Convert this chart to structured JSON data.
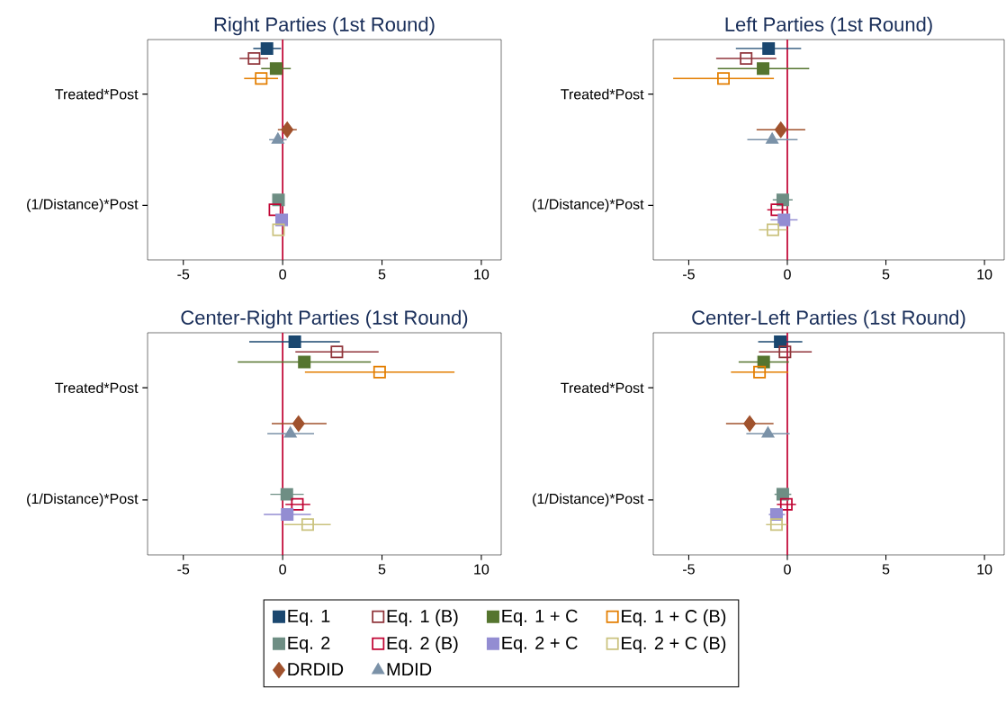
{
  "chart_data": [
    {
      "type": "scatter",
      "orientation": "horizontal",
      "title": "Right Parties (1st Round)",
      "categories": [
        "Treated*Post",
        "(1/Distance)*Post"
      ],
      "xlim": [
        -6.8,
        11
      ],
      "xticks": [
        -5,
        0,
        5,
        10
      ],
      "ref_lines": [
        {
          "axis": "x",
          "value": 0,
          "color": "#c10534"
        }
      ],
      "series": [
        {
          "color": "#1a476f",
          "marker": "square",
          "values": [
            -0.79,
            null
          ],
          "errors": [
            [
              -1.48,
              -0.08
            ],
            null
          ]
        },
        {
          "color": "#90353b",
          "marker": "square",
          "values": [
            -1.44,
            null
          ],
          "errors": [
            [
              -2.17,
              -0.73
            ],
            null
          ]
        },
        {
          "color": "#55752f",
          "marker": "square",
          "values": [
            -0.33,
            null
          ],
          "errors": [
            [
              -1.08,
              0.41
            ],
            null
          ]
        },
        {
          "color": "#e37e00",
          "marker": "square",
          "values": [
            -1.08,
            null
          ],
          "errors": [
            [
              -1.94,
              -0.23
            ],
            null
          ]
        },
        {
          "color": "#6e8e84",
          "marker": "square",
          "values": [
            null,
            -0.21
          ],
          "errors": [
            null,
            null
          ]
        },
        {
          "color": "#c10534",
          "marker": "square",
          "values": [
            null,
            -0.39
          ],
          "errors": [
            null,
            null
          ]
        },
        {
          "color": "#938dd2",
          "marker": "square",
          "values": [
            null,
            -0.05
          ],
          "errors": [
            null,
            null
          ]
        },
        {
          "color": "#cac27e",
          "marker": "square",
          "values": [
            null,
            -0.21
          ],
          "errors": [
            null,
            null
          ]
        },
        {
          "color": "#a0522d",
          "marker": "diamond",
          "values": [
            0.23,
            null
          ],
          "errors": [
            [
              -0.24,
              0.71
            ],
            null
          ]
        },
        {
          "color": "#7b92a8",
          "marker": "triangle",
          "values": [
            -0.24,
            null
          ],
          "errors": [
            [
              -0.68,
              0.2
            ],
            null
          ]
        }
      ]
    },
    {
      "type": "scatter",
      "orientation": "horizontal",
      "title": "Left Parties (1st Round)",
      "categories": [
        "Treated*Post",
        "(1/Distance)*Post"
      ],
      "xlim": [
        -6.8,
        11
      ],
      "xticks": [
        -5,
        0,
        5,
        10
      ],
      "ref_lines": [
        {
          "axis": "x",
          "value": 0,
          "color": "#c10534"
        }
      ],
      "series": [
        {
          "color": "#1a476f",
          "marker": "square",
          "values": [
            -0.95,
            null
          ],
          "errors": [
            [
              -2.61,
              0.7
            ],
            null
          ]
        },
        {
          "color": "#90353b",
          "marker": "square",
          "values": [
            -2.09,
            null
          ],
          "errors": [
            [
              -3.61,
              -0.56
            ],
            null
          ]
        },
        {
          "color": "#55752f",
          "marker": "square",
          "values": [
            -1.23,
            null
          ],
          "errors": [
            [
              -3.53,
              1.11
            ],
            null
          ]
        },
        {
          "color": "#e37e00",
          "marker": "square",
          "values": [
            -3.24,
            null
          ],
          "errors": [
            [
              -5.79,
              -0.68
            ],
            null
          ]
        },
        {
          "color": "#6e8e84",
          "marker": "square",
          "values": [
            null,
            -0.23
          ],
          "errors": [
            null,
            [
              -0.74,
              0.27
            ]
          ]
        },
        {
          "color": "#c10534",
          "marker": "square",
          "values": [
            null,
            -0.53
          ],
          "errors": [
            null,
            [
              -1.02,
              -0.03
            ]
          ]
        },
        {
          "color": "#938dd2",
          "marker": "square",
          "values": [
            null,
            -0.17
          ],
          "errors": [
            null,
            [
              -0.85,
              0.52
            ]
          ]
        },
        {
          "color": "#cac27e",
          "marker": "square",
          "values": [
            null,
            -0.73
          ],
          "errors": [
            null,
            [
              -1.44,
              -0.02
            ]
          ]
        },
        {
          "color": "#a0522d",
          "marker": "diamond",
          "values": [
            -0.33,
            null
          ],
          "errors": [
            [
              -1.56,
              0.91
            ],
            null
          ]
        },
        {
          "color": "#7b92a8",
          "marker": "triangle",
          "values": [
            -0.77,
            null
          ],
          "errors": [
            [
              -2.03,
              0.52
            ],
            null
          ]
        }
      ]
    },
    {
      "type": "scatter",
      "orientation": "horizontal",
      "title": "Center-Right Parties (1st Round)",
      "categories": [
        "Treated*Post",
        "(1/Distance)*Post"
      ],
      "xlim": [
        -6.8,
        11
      ],
      "xticks": [
        -5,
        0,
        5,
        10
      ],
      "ref_lines": [
        {
          "axis": "x",
          "value": 0,
          "color": "#c10534"
        }
      ],
      "legend": "bottom",
      "series": [
        {
          "name": "Eq. 1",
          "color": "#1a476f",
          "marker": "square",
          "values": [
            0.61,
            null
          ],
          "errors": [
            [
              -1.68,
              2.88
            ],
            null
          ]
        },
        {
          "name": "Eq. 1 (B)",
          "color": "#90353b",
          "marker": "square",
          "values": [
            2.73,
            null
          ],
          "errors": [
            [
              0.64,
              4.83
            ],
            null
          ]
        },
        {
          "name": "Eq. 1 + C",
          "color": "#55752f",
          "marker": "square",
          "values": [
            1.09,
            null
          ],
          "errors": [
            [
              -2.26,
              4.44
            ],
            null
          ]
        },
        {
          "name": "Eq. 1 + C (B)",
          "color": "#e37e00",
          "marker": "square",
          "values": [
            4.88,
            null
          ],
          "errors": [
            [
              1.12,
              8.65
            ],
            null
          ]
        },
        {
          "name": "Eq. 2",
          "color": "#6e8e84",
          "marker": "square",
          "values": [
            null,
            0.21
          ],
          "errors": [
            null,
            [
              -0.62,
              1.06
            ]
          ]
        },
        {
          "name": "Eq. 2 (B)",
          "color": "#c10534",
          "marker": "square",
          "values": [
            null,
            0.74
          ],
          "errors": [
            null,
            [
              0.14,
              1.39
            ]
          ]
        },
        {
          "name": "Eq. 2 + C",
          "color": "#938dd2",
          "marker": "square",
          "values": [
            null,
            0.23
          ],
          "errors": [
            null,
            [
              -0.95,
              1.42
            ]
          ]
        },
        {
          "name": "Eq. 2 + C (B)",
          "color": "#cac27e",
          "marker": "square",
          "values": [
            null,
            1.26
          ],
          "errors": [
            null,
            [
              0.08,
              2.42
            ]
          ]
        },
        {
          "name": "DRDID",
          "color": "#a0522d",
          "marker": "diamond",
          "values": [
            0.8,
            null
          ],
          "errors": [
            [
              -0.55,
              2.21
            ],
            null
          ]
        },
        {
          "name": "MDID",
          "color": "#7b92a8",
          "marker": "triangle",
          "values": [
            0.39,
            null
          ],
          "errors": [
            [
              -0.77,
              1.58
            ],
            null
          ]
        }
      ]
    },
    {
      "type": "scatter",
      "orientation": "horizontal",
      "title": "Center-Left Parties (1st Round)",
      "categories": [
        "Treated*Post",
        "(1/Distance)*Post"
      ],
      "xlim": [
        -6.8,
        11
      ],
      "xticks": [
        -5,
        0,
        5,
        10
      ],
      "ref_lines": [
        {
          "axis": "x",
          "value": 0,
          "color": "#c10534"
        }
      ],
      "series": [
        {
          "color": "#1a476f",
          "marker": "square",
          "values": [
            -0.36,
            null
          ],
          "errors": [
            [
              -1.48,
              0.76
            ],
            null
          ]
        },
        {
          "color": "#90353b",
          "marker": "square",
          "values": [
            -0.12,
            null
          ],
          "errors": [
            [
              -1.44,
              1.24
            ],
            null
          ]
        },
        {
          "color": "#55752f",
          "marker": "square",
          "values": [
            -1.2,
            null
          ],
          "errors": [
            [
              -2.47,
              0.08
            ],
            null
          ]
        },
        {
          "color": "#e37e00",
          "marker": "square",
          "values": [
            -1.41,
            null
          ],
          "errors": [
            [
              -2.86,
              0.05
            ],
            null
          ]
        },
        {
          "color": "#6e8e84",
          "marker": "square",
          "values": [
            null,
            -0.23
          ],
          "errors": [
            null,
            [
              -0.65,
              0.2
            ]
          ]
        },
        {
          "color": "#c10534",
          "marker": "square",
          "values": [
            null,
            -0.05
          ],
          "errors": [
            null,
            [
              -0.53,
              0.44
            ]
          ]
        },
        {
          "color": "#938dd2",
          "marker": "square",
          "values": [
            null,
            -0.55
          ],
          "errors": [
            null,
            [
              -0.94,
              -0.12
            ]
          ]
        },
        {
          "color": "#cac27e",
          "marker": "square",
          "values": [
            null,
            -0.55
          ],
          "errors": [
            null,
            [
              -1.08,
              -0.02
            ]
          ]
        },
        {
          "color": "#a0522d",
          "marker": "diamond",
          "values": [
            -1.91,
            null
          ],
          "errors": [
            [
              -3.11,
              -0.7
            ],
            null
          ]
        },
        {
          "color": "#7b92a8",
          "marker": "triangle",
          "values": [
            -0.98,
            null
          ],
          "errors": [
            [
              -2.08,
              0.12
            ],
            null
          ]
        }
      ]
    }
  ]
}
